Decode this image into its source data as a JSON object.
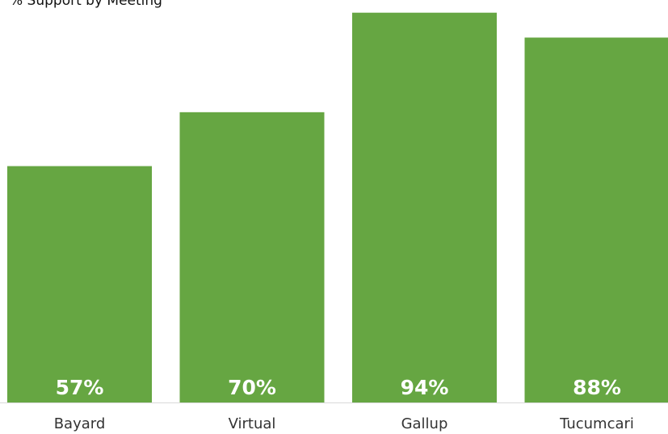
{
  "chart_data": {
    "type": "bar",
    "title": "% Support by Meeting",
    "categories": [
      "Bayard",
      "Virtual",
      "Gallup",
      "Tucumcari"
    ],
    "values": [
      57,
      70,
      94,
      88
    ],
    "value_labels": [
      "57%",
      "70%",
      "94%",
      "88%"
    ],
    "xlabel": "",
    "ylabel": "",
    "ylim": [
      0,
      95.5
    ],
    "grid": false,
    "legend": "none",
    "bar_color": "#66a642",
    "label_color": "#ffffff",
    "axis_color": "#d9d9d9",
    "tick_label_color": "#333333"
  }
}
